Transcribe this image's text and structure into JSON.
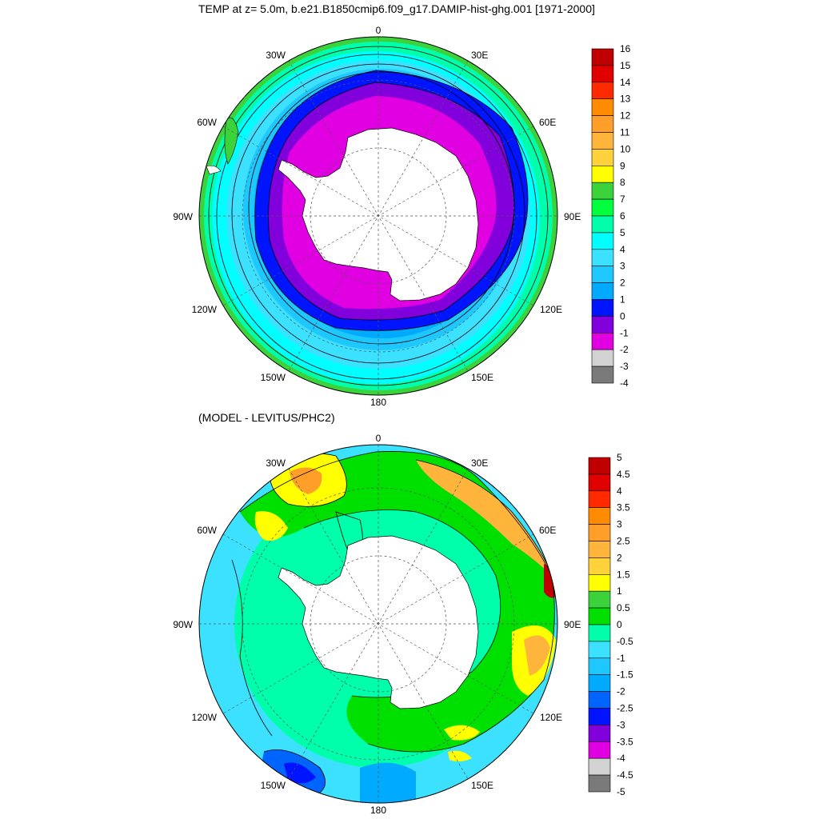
{
  "panels": [
    {
      "title": "TEMP at z=   5.0m, b.e21.B1850cmip6.f09_g17.DAMIP-hist-ghg.001 [1971-2000]",
      "lon_labels": {
        "top": "0",
        "bottom": "180",
        "left": "90W",
        "right": "90E",
        "upper_left": "30W",
        "upper_right": "30E",
        "mid_left": "60W",
        "mid_right": "60E",
        "lower_left": "120W",
        "lower_right": "120E",
        "bottom_left": "150W",
        "bottom_right": "150E"
      },
      "colorbar": {
        "labels": [
          "16",
          "15",
          "14",
          "13",
          "12",
          "11",
          "10",
          "9",
          "8",
          "7",
          "6",
          "5",
          "4",
          "3",
          "2",
          "1",
          "0",
          "-1",
          "-2",
          "-3",
          "-4"
        ],
        "colors": [
          "#c00000",
          "#e00000",
          "#ff2a00",
          "#ff8c00",
          "#ff9f2a",
          "#ffb43c",
          "#ffd23c",
          "#ffff00",
          "#3cd23c",
          "#00ff3c",
          "#00ffaa",
          "#00ffff",
          "#3ce1ff",
          "#1ec8ff",
          "#00aaff",
          "#0014ff",
          "#8200dc",
          "#e100e1",
          "#d2d2d2",
          "#7a7a7a"
        ]
      }
    },
    {
      "title": "(MODEL - LEVITUS/PHC2)",
      "lon_labels": {
        "top": "0",
        "bottom": "180",
        "left": "90W",
        "right": "90E",
        "upper_left": "30W",
        "upper_right": "30E",
        "mid_left": "60W",
        "mid_right": "60E",
        "lower_left": "120W",
        "lower_right": "120E",
        "bottom_left": "150W",
        "bottom_right": "150E"
      },
      "colorbar": {
        "labels": [
          "5",
          "4.5",
          "4",
          "3.5",
          "3",
          "2.5",
          "2",
          "1.5",
          "1",
          "0.5",
          "0",
          "-0.5",
          "-1",
          "-1.5",
          "-2",
          "-2.5",
          "-3",
          "-3.5",
          "-4",
          "-4.5",
          "-5"
        ],
        "colors": [
          "#c00000",
          "#e00000",
          "#ff2a00",
          "#ff8c00",
          "#ff9f2a",
          "#ffb43c",
          "#ffd23c",
          "#ffff00",
          "#3cd23c",
          "#00e000",
          "#00ffaa",
          "#3ce1ff",
          "#1ec8ff",
          "#00aaff",
          "#0064ff",
          "#0014ff",
          "#8200dc",
          "#e100e1",
          "#d2d2d2",
          "#7a7a7a"
        ]
      }
    }
  ]
}
